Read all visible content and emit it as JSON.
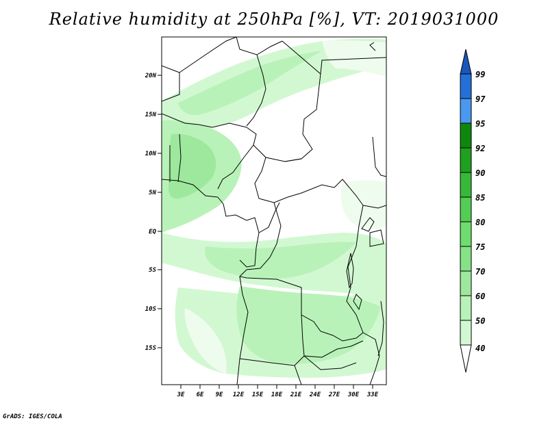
{
  "title": "Relative humidity at 250hPa [%], VT: 2019031000",
  "credit": "GrADS: IGES/COLA",
  "chart_data": {
    "type": "heatmap",
    "title": "Relative humidity at 250hPa [%], VT: 2019031000",
    "variable": "Relative humidity",
    "units": "%",
    "level": "250hPa",
    "valid_time": "2019031000",
    "lon_range": [
      0,
      34
    ],
    "lat_range": [
      -20,
      24
    ],
    "x_ticks": [
      "3E",
      "6E",
      "9E",
      "12E",
      "15E",
      "18E",
      "21E",
      "24E",
      "27E",
      "30E",
      "33E"
    ],
    "y_ticks": [
      "20N",
      "15N",
      "10N",
      "5N",
      "EQ",
      "5S",
      "10S",
      "15S"
    ],
    "colorbar": {
      "levels": [
        40,
        50,
        60,
        70,
        75,
        80,
        85,
        90,
        92,
        95,
        97,
        99
      ],
      "colors": [
        "#eefcee",
        "#d2f8d2",
        "#b8f2b8",
        "#9de89d",
        "#86e286",
        "#6edc6e",
        "#53cd53",
        "#38b838",
        "#1fa01f",
        "#0d880d",
        "#4a98ef",
        "#2470d8",
        "#1a56bc"
      ]
    }
  }
}
